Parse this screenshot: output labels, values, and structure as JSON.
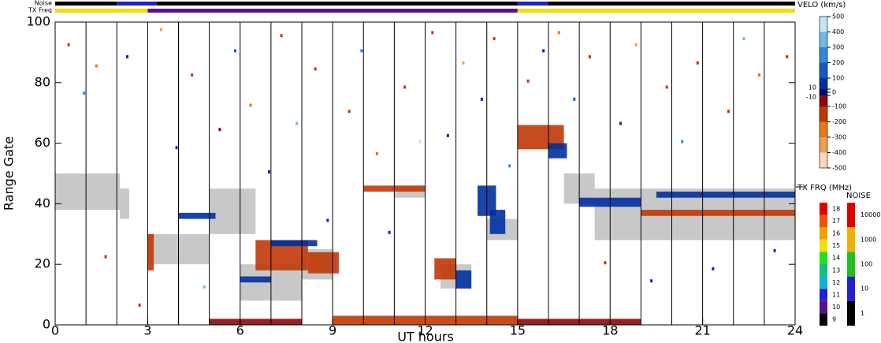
{
  "chart_data": {
    "type": "range-time",
    "xlabel": "UT hours",
    "ylabel": "Range Gate",
    "xlim": [
      0,
      24
    ],
    "xticks": [
      0,
      3,
      6,
      9,
      12,
      15,
      18,
      21,
      24
    ],
    "ylim": [
      0,
      100
    ],
    "yticks": [
      0,
      20,
      40,
      60,
      80,
      100
    ],
    "scan_lines": [
      1,
      2,
      3,
      4,
      5,
      6,
      7,
      8,
      9,
      10,
      11,
      12,
      13,
      14,
      15,
      16,
      17,
      18,
      19,
      20,
      21,
      22,
      23
    ],
    "noise_label": "Noise",
    "txfreq_label": "TX Freq",
    "noise": [
      {
        "t0": 0,
        "t1": 2,
        "value": 1
      },
      {
        "t0": 2,
        "t1": 3.3,
        "value": 10
      },
      {
        "t0": 3.3,
        "t1": 15,
        "value": 1
      },
      {
        "t0": 15,
        "t1": 16,
        "value": 10
      },
      {
        "t0": 16,
        "t1": 24,
        "value": 1
      }
    ],
    "txfreq": [
      {
        "t0": 0,
        "t1": 3,
        "value": 15
      },
      {
        "t0": 3,
        "t1": 15,
        "value": 10
      },
      {
        "t0": 15,
        "t1": 24,
        "value": 15
      }
    ],
    "velo_title": "VELO (km/s)",
    "velo_ticks": [
      500,
      400,
      300,
      200,
      100,
      10,
      0,
      -10,
      -100,
      -200,
      -300,
      -400,
      -500
    ],
    "velo_colors": [
      {
        "value": -500,
        "color": "#f8d8b8"
      },
      {
        "value": -400,
        "color": "#f0a050"
      },
      {
        "value": -300,
        "color": "#e87818"
      },
      {
        "value": -200,
        "color": "#c03808"
      },
      {
        "value": -100,
        "color": "#8c0808"
      },
      {
        "value": -10,
        "color": "#ffffff"
      },
      {
        "value": 10,
        "color": "#00106e"
      },
      {
        "value": 100,
        "color": "#0030a0"
      },
      {
        "value": 200,
        "color": "#1858c0"
      },
      {
        "value": 300,
        "color": "#3088d8"
      },
      {
        "value": 400,
        "color": "#70b8e8"
      },
      {
        "value": 500,
        "color": "#c0e4f8"
      }
    ],
    "txfrq_title": "TX FRQ (MHz)",
    "txfrq_ticks": [
      9,
      10,
      11,
      12,
      13,
      14,
      15,
      16,
      17,
      18
    ],
    "txfrq_colors": [
      "#000000",
      "#5a1090",
      "#2020d0",
      "#10b0d8",
      "#10c080",
      "#20e020",
      "#f0e000",
      "#f0a000",
      "#f05000",
      "#e00000"
    ],
    "noise_title": "NOISE",
    "noise_ticks": [
      1,
      10,
      100,
      1000,
      10000
    ],
    "noise_colors": [
      "#000000",
      "#2020d0",
      "#20c020",
      "#f0b000",
      "#e00000"
    ],
    "ground_scatter_color": "#c8c8c8",
    "ground_scatter": [
      {
        "t0": 0,
        "t1": 2.1,
        "g0": 38,
        "g1": 50
      },
      {
        "t0": 2.1,
        "t1": 2.4,
        "g0": 35,
        "g1": 45
      },
      {
        "t0": 3,
        "t1": 5,
        "g0": 20,
        "g1": 30
      },
      {
        "t0": 5,
        "t1": 6.5,
        "g0": 30,
        "g1": 45
      },
      {
        "t0": 6,
        "t1": 8,
        "g0": 8,
        "g1": 20
      },
      {
        "t0": 8,
        "t1": 9,
        "g0": 15,
        "g1": 25
      },
      {
        "t0": 11,
        "t1": 12,
        "g0": 42,
        "g1": 46
      },
      {
        "t0": 12.5,
        "t1": 13.5,
        "g0": 12,
        "g1": 20
      },
      {
        "t0": 14,
        "t1": 15,
        "g0": 28,
        "g1": 35
      },
      {
        "t0": 16.5,
        "t1": 17.5,
        "g0": 40,
        "g1": 50
      },
      {
        "t0": 17.5,
        "t1": 24,
        "g0": 28,
        "g1": 45
      }
    ],
    "echoes": [
      {
        "t0": 3,
        "t1": 3.2,
        "g0": 18,
        "g1": 30,
        "v": -150
      },
      {
        "t0": 6.5,
        "t1": 8.2,
        "g0": 18,
        "g1": 28,
        "v": -150
      },
      {
        "t0": 8.2,
        "t1": 9.2,
        "g0": 17,
        "g1": 24,
        "v": -200
      },
      {
        "t0": 5,
        "t1": 8,
        "g0": 0,
        "g1": 2,
        "v": -120
      },
      {
        "t0": 9,
        "t1": 15,
        "g0": 0,
        "g1": 3,
        "v": -150
      },
      {
        "t0": 15,
        "t1": 19,
        "g0": 0,
        "g1": 2,
        "v": -120
      },
      {
        "t0": 12.3,
        "t1": 13,
        "g0": 15,
        "g1": 22,
        "v": -180
      },
      {
        "t0": 13,
        "t1": 13.5,
        "g0": 12,
        "g1": 18,
        "v": 100
      },
      {
        "t0": 13.7,
        "t1": 14.3,
        "g0": 36,
        "g1": 46,
        "v": 120
      },
      {
        "t0": 14.1,
        "t1": 14.6,
        "g0": 30,
        "g1": 38,
        "v": 80
      },
      {
        "t0": 15,
        "t1": 16.5,
        "g0": 58,
        "g1": 66,
        "v": -150
      },
      {
        "t0": 16,
        "t1": 16.6,
        "g0": 55,
        "g1": 60,
        "v": 100
      },
      {
        "t0": 17,
        "t1": 19,
        "g0": 39,
        "g1": 42,
        "v": 100
      },
      {
        "t0": 19,
        "t1": 24,
        "g0": 36,
        "g1": 38,
        "v": -150
      },
      {
        "t0": 19.5,
        "t1": 24,
        "g0": 42,
        "g1": 44,
        "v": 100
      },
      {
        "t0": 6,
        "t1": 7,
        "g0": 14,
        "g1": 16,
        "v": 80
      },
      {
        "t0": 7,
        "t1": 8.5,
        "g0": 26,
        "g1": 28,
        "v": 60
      },
      {
        "t0": 10,
        "t1": 12,
        "g0": 44,
        "g1": 46,
        "v": -150
      },
      {
        "t0": 4,
        "t1": 5.2,
        "g0": 35,
        "g1": 37,
        "v": 90
      }
    ],
    "specks": [
      {
        "t": 0.4,
        "g": 92,
        "v": -150
      },
      {
        "t": 0.9,
        "g": 76,
        "v": 300
      },
      {
        "t": 1.3,
        "g": 85,
        "v": -300
      },
      {
        "t": 1.6,
        "g": 22,
        "v": -150
      },
      {
        "t": 2.3,
        "g": 88,
        "v": 100
      },
      {
        "t": 2.7,
        "g": 6,
        "v": -200
      },
      {
        "t": 3.4,
        "g": 97,
        "v": -400
      },
      {
        "t": 3.9,
        "g": 58,
        "v": 100
      },
      {
        "t": 4.4,
        "g": 82,
        "v": -150
      },
      {
        "t": 4.8,
        "g": 12,
        "v": 400
      },
      {
        "t": 5.3,
        "g": 64,
        "v": -100
      },
      {
        "t": 5.8,
        "g": 90,
        "v": 200
      },
      {
        "t": 6.3,
        "g": 72,
        "v": -300
      },
      {
        "t": 6.9,
        "g": 50,
        "v": 100
      },
      {
        "t": 7.3,
        "g": 95,
        "v": -150
      },
      {
        "t": 7.8,
        "g": 66,
        "v": 400
      },
      {
        "t": 8.4,
        "g": 84,
        "v": -200
      },
      {
        "t": 8.8,
        "g": 34,
        "v": 100
      },
      {
        "t": 9.5,
        "g": 70,
        "v": -150
      },
      {
        "t": 9.9,
        "g": 90,
        "v": 300
      },
      {
        "t": 10.4,
        "g": 56,
        "v": -300
      },
      {
        "t": 10.8,
        "g": 30,
        "v": 100
      },
      {
        "t": 11.3,
        "g": 78,
        "v": -150
      },
      {
        "t": 11.8,
        "g": 60,
        "v": 500
      },
      {
        "t": 12.2,
        "g": 96,
        "v": -200
      },
      {
        "t": 12.7,
        "g": 62,
        "v": 100
      },
      {
        "t": 13.2,
        "g": 86,
        "v": -400
      },
      {
        "t": 13.8,
        "g": 74,
        "v": 100
      },
      {
        "t": 14.2,
        "g": 94,
        "v": -150
      },
      {
        "t": 14.7,
        "g": 52,
        "v": 300
      },
      {
        "t": 15.3,
        "g": 80,
        "v": -150
      },
      {
        "t": 15.8,
        "g": 90,
        "v": 100
      },
      {
        "t": 16.3,
        "g": 96,
        "v": -300
      },
      {
        "t": 16.8,
        "g": 74,
        "v": 200
      },
      {
        "t": 17.3,
        "g": 88,
        "v": -150
      },
      {
        "t": 17.8,
        "g": 20,
        "v": -200
      },
      {
        "t": 18.3,
        "g": 66,
        "v": 100
      },
      {
        "t": 18.8,
        "g": 92,
        "v": -400
      },
      {
        "t": 19.3,
        "g": 14,
        "v": 100
      },
      {
        "t": 19.8,
        "g": 78,
        "v": -150
      },
      {
        "t": 20.3,
        "g": 60,
        "v": 300
      },
      {
        "t": 20.8,
        "g": 86,
        "v": -150
      },
      {
        "t": 21.3,
        "g": 18,
        "v": 100
      },
      {
        "t": 21.8,
        "g": 70,
        "v": -200
      },
      {
        "t": 22.3,
        "g": 94,
        "v": 400
      },
      {
        "t": 22.8,
        "g": 82,
        "v": -300
      },
      {
        "t": 23.3,
        "g": 24,
        "v": 100
      },
      {
        "t": 23.7,
        "g": 88,
        "v": -150
      }
    ]
  }
}
